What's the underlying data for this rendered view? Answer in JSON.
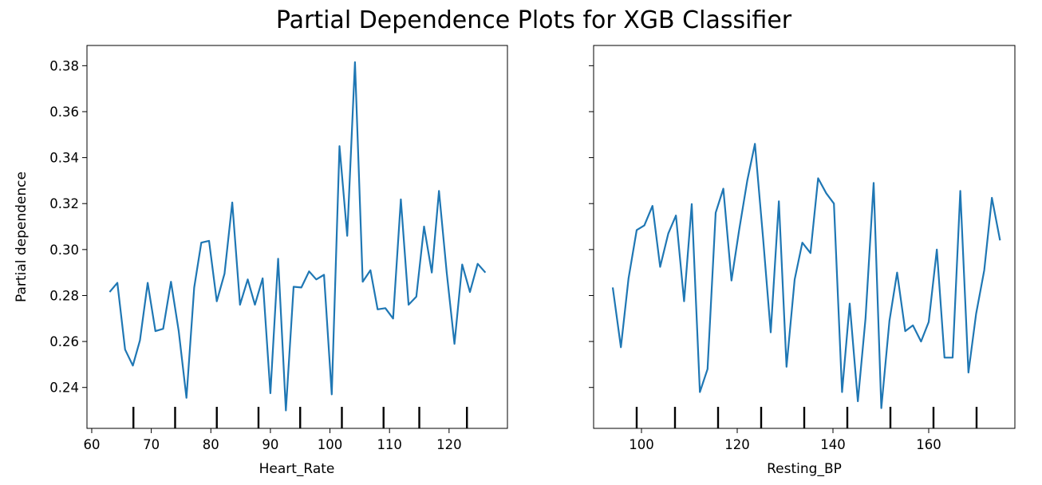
{
  "figure": {
    "title": "Partial Dependence Plots for XGB Classifier"
  },
  "chart_data": [
    {
      "type": "line",
      "xlabel": "Heart_Rate",
      "ylabel": "Partial dependence",
      "xlim": [
        59.2,
        129.8
      ],
      "ylim": [
        0.2222,
        0.3888
      ],
      "xticks": [
        60,
        70,
        80,
        90,
        100,
        110,
        120
      ],
      "yticks": [
        0.24,
        0.26,
        0.28,
        0.3,
        0.32,
        0.34,
        0.36,
        0.38
      ],
      "ytick_labels": [
        "0.24",
        "0.26",
        "0.28",
        "0.30",
        "0.32",
        "0.34",
        "0.36",
        "0.38"
      ],
      "line_color": "#1f77b4",
      "deciles": [
        67,
        74,
        81,
        88,
        95,
        102,
        109,
        115,
        123
      ],
      "series": [
        {
          "x": [
            63,
            64.3,
            65.6,
            66.9,
            68.1,
            69.4,
            70.7,
            72,
            73.3,
            74.6,
            75.9,
            77.2,
            78.4,
            79.7,
            81,
            82.3,
            83.6,
            84.9,
            86.2,
            87.4,
            88.7,
            90,
            91.3,
            92.6,
            93.9,
            95.2,
            96.5,
            97.7,
            99,
            100.3,
            101.6,
            102.9,
            104.2,
            105.5,
            106.8,
            108,
            109.3,
            110.6,
            111.9,
            113.2,
            114.5,
            115.8,
            117.1,
            118.3,
            119.6,
            120.9,
            122.2,
            123.5,
            124.8,
            126.1
          ],
          "y": [
            0.2815,
            0.2855,
            0.2565,
            0.2495,
            0.2605,
            0.2855,
            0.2645,
            0.2655,
            0.286,
            0.2645,
            0.2355,
            0.2835,
            0.303,
            0.3038,
            0.2775,
            0.2895,
            0.3205,
            0.276,
            0.287,
            0.276,
            0.2875,
            0.2375,
            0.296,
            0.23,
            0.2838,
            0.2835,
            0.2905,
            0.287,
            0.289,
            0.237,
            0.345,
            0.306,
            0.3815,
            0.286,
            0.291,
            0.274,
            0.2745,
            0.27,
            0.3218,
            0.276,
            0.2795,
            0.31,
            0.29,
            0.3255,
            0.29,
            0.259,
            0.2935,
            0.2815,
            0.2938,
            0.29
          ]
        }
      ]
    },
    {
      "type": "line",
      "xlabel": "Resting_BP",
      "ylabel": "",
      "xlim": [
        90,
        178
      ],
      "ylim": [
        0.2222,
        0.3888
      ],
      "xticks": [
        100,
        120,
        140,
        160
      ],
      "yticks": [
        0.24,
        0.26,
        0.28,
        0.3,
        0.32,
        0.34,
        0.36,
        0.38
      ],
      "line_color": "#1f77b4",
      "deciles": [
        99,
        107,
        116,
        125,
        134,
        143,
        152,
        161,
        170
      ],
      "series": [
        {
          "x": [
            94,
            95.7,
            97.3,
            99,
            100.6,
            102.3,
            103.9,
            105.6,
            107.2,
            108.9,
            110.5,
            112.2,
            113.8,
            115.5,
            117.1,
            118.8,
            120.4,
            122.1,
            123.7,
            125.4,
            127,
            128.7,
            130.3,
            132,
            133.6,
            135.3,
            136.9,
            138.6,
            140.2,
            141.9,
            143.5,
            145.2,
            146.8,
            148.5,
            150.1,
            151.8,
            153.4,
            155.1,
            156.7,
            158.4,
            160,
            161.7,
            163.3,
            165,
            166.6,
            168.3,
            169.9,
            171.6,
            173.2,
            174.9
          ],
          "y": [
            0.2835,
            0.2575,
            0.2875,
            0.3085,
            0.3105,
            0.319,
            0.2925,
            0.307,
            0.3148,
            0.2775,
            0.3198,
            0.238,
            0.248,
            0.316,
            0.3265,
            0.2865,
            0.3085,
            0.33,
            0.346,
            0.305,
            0.264,
            0.321,
            0.249,
            0.287,
            0.303,
            0.2985,
            0.331,
            0.3245,
            0.32,
            0.238,
            0.2765,
            0.234,
            0.27,
            0.329,
            0.231,
            0.269,
            0.29,
            0.2645,
            0.267,
            0.26,
            0.2685,
            0.3,
            0.253,
            0.253,
            0.3255,
            0.2465,
            0.272,
            0.291,
            0.3225,
            0.304
          ]
        }
      ]
    }
  ]
}
